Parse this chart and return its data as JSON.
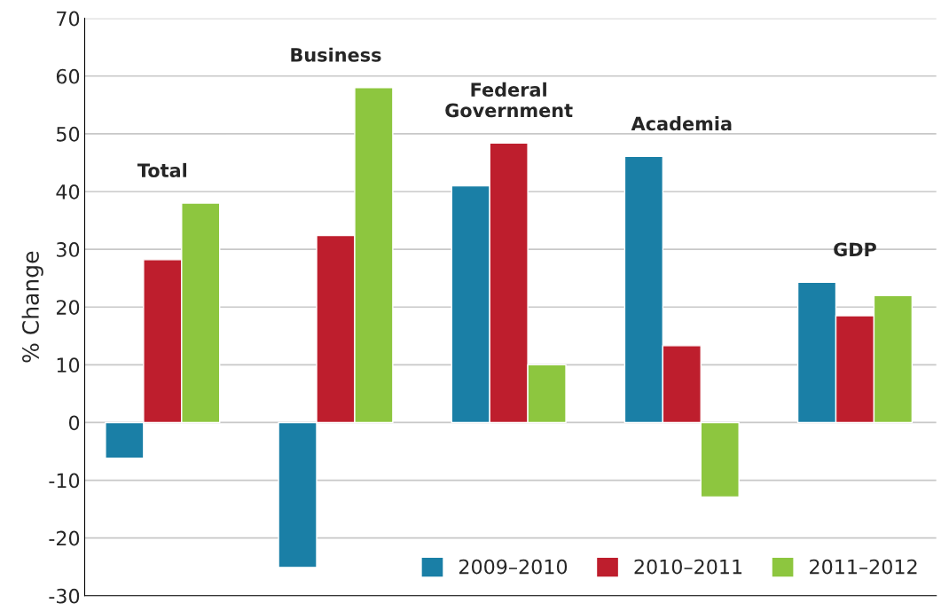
{
  "chart_data": {
    "type": "bar",
    "ylabel": "% Change",
    "categories": [
      "Total",
      "Business",
      "Federal\nGovernment",
      "Academia",
      "GDP"
    ],
    "series": [
      {
        "name": "2009–2010",
        "color": "#1a7fa6",
        "values": [
          -6.2,
          -25.1,
          41.0,
          46.1,
          24.3
        ]
      },
      {
        "name": "2010–2011",
        "color": "#be1e2d",
        "values": [
          28.2,
          32.4,
          48.4,
          13.3,
          18.5
        ]
      },
      {
        "name": "2011–2012",
        "color": "#8dc63f",
        "values": [
          38.0,
          58.0,
          10.0,
          -12.9,
          22.0
        ]
      }
    ],
    "ylim": [
      -30,
      70
    ],
    "yticks": [
      -30,
      -20,
      -10,
      0,
      10,
      20,
      30,
      40,
      50,
      60,
      70
    ],
    "grid": "y",
    "legend": "bottom right",
    "tick_labels": "y"
  }
}
